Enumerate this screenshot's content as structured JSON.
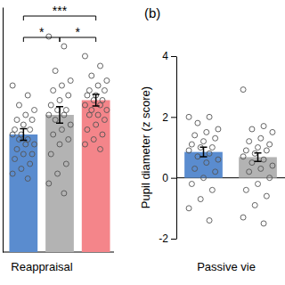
{
  "chart_data": [
    {
      "type": "bar",
      "x_label": "Reappraisal",
      "categories": [
        null,
        null,
        null
      ],
      "values": [
        2.4,
        2.8,
        3.1
      ],
      "errors": [
        0.12,
        0.17,
        0.12
      ],
      "colors": [
        "#5a8ccf",
        "#b3b3b3",
        "#f4858a"
      ],
      "points": [
        [
          3.4,
          3.2,
          3.0,
          2.9,
          2.8,
          2.7,
          2.7,
          2.6,
          2.5,
          2.5,
          2.4,
          2.4,
          2.3,
          2.3,
          2.2,
          2.2,
          2.1,
          2.0,
          2.0,
          1.9,
          1.8,
          1.7,
          1.6,
          1.5
        ],
        [
          4.4,
          4.2,
          3.7,
          3.5,
          3.4,
          3.3,
          3.2,
          3.1,
          3.0,
          2.9,
          2.9,
          2.8,
          2.8,
          2.7,
          2.6,
          2.5,
          2.4,
          2.3,
          2.2,
          2.0,
          1.8,
          1.6,
          1.4,
          1.2
        ],
        [
          4.0,
          3.8,
          3.6,
          3.5,
          3.4,
          3.3,
          3.3,
          3.2,
          3.2,
          3.1,
          3.1,
          3.0,
          3.0,
          2.9,
          2.9,
          2.8,
          2.8,
          2.7,
          2.6,
          2.5,
          2.4,
          2.3,
          2.2,
          2.1
        ]
      ],
      "ylim": [
        0,
        5
      ],
      "tick_labels": false,
      "annotations": [
        {
          "from": 0,
          "to": 1,
          "label": "*"
        },
        {
          "from": 0,
          "to": 2,
          "label": "***"
        },
        {
          "from": 1,
          "to": 2,
          "label": "*"
        }
      ]
    },
    {
      "type": "bar",
      "panel_label": "(b)",
      "y_label": "Pupil diameter (z score)",
      "x_label": "Passive vie",
      "categories": [
        null,
        null
      ],
      "values": [
        0.85,
        0.68
      ],
      "errors": [
        0.16,
        0.14
      ],
      "colors": [
        "#5a8ccf",
        "#b3b3b3"
      ],
      "points": [
        [
          2.0,
          2.0,
          1.8,
          1.6,
          1.5,
          1.4,
          1.3,
          1.2,
          1.1,
          1.0,
          1.0,
          0.9,
          0.8,
          0.7,
          0.6,
          0.5,
          0.3,
          0.2,
          0.0,
          -0.2,
          -0.4,
          -0.7,
          -1.0,
          -1.4
        ],
        [
          2.9,
          1.7,
          1.6,
          1.5,
          1.3,
          1.2,
          1.1,
          1.0,
          0.9,
          0.9,
          0.8,
          0.7,
          0.6,
          0.5,
          0.4,
          0.3,
          0.2,
          0.0,
          -0.2,
          -0.4,
          -0.6,
          -0.9,
          -1.3,
          -1.5
        ]
      ],
      "ylim": [
        -2,
        4
      ],
      "yticks": [
        -2,
        0,
        2,
        4
      ],
      "tick_labels": "y"
    }
  ]
}
